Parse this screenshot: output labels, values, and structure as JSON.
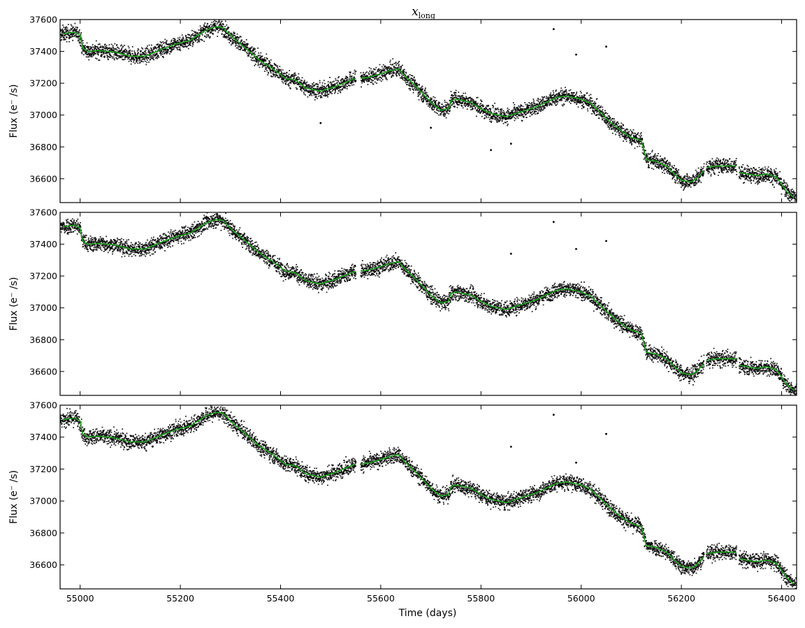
{
  "title": {
    "main": "x",
    "sub": "long"
  },
  "colors": {
    "points": "#000000",
    "model": "#1fa51f",
    "background": "#ffffff"
  },
  "chart_data": [
    {
      "type": "scatter",
      "panel": "top",
      "ylabel": "Flux (e⁻ /s)",
      "xlabel": "",
      "xlim": [
        54960,
        56430
      ],
      "ylim": [
        36450,
        37600
      ],
      "yticks": [
        36600,
        36800,
        37000,
        37200,
        37400,
        37600
      ],
      "xticks": [
        55000,
        55200,
        55400,
        55600,
        55800,
        56000,
        56200,
        56400
      ],
      "show_xticklabels": false,
      "gaps": [
        [
          55550,
          55560
        ],
        [
          56245,
          56250
        ],
        [
          56310,
          56315
        ]
      ],
      "model": {
        "x": [
          54965,
          54990,
          55000,
          55005,
          55015,
          55040,
          55070,
          55100,
          55130,
          55160,
          55190,
          55220,
          55250,
          55270,
          55285,
          55300,
          55330,
          55360,
          55385,
          55410,
          55430,
          55450,
          55480,
          55510,
          55540,
          55550,
          55560,
          55580,
          55600,
          55620,
          55635,
          55650,
          55670,
          55700,
          55720,
          55735,
          55740,
          55750,
          55765,
          55780,
          55800,
          55820,
          55850,
          55870,
          55890,
          55910,
          55930,
          55950,
          55970,
          56000,
          56020,
          56040,
          56060,
          56080,
          56100,
          56110,
          56120,
          56125,
          56130,
          56150,
          56170,
          56190,
          56200,
          56220,
          56230,
          56245,
          56250,
          56270,
          56290,
          56310,
          56315,
          56330,
          56350,
          56370,
          56390,
          56410,
          56425
        ],
        "y": [
          37510,
          37520,
          37500,
          37420,
          37400,
          37405,
          37395,
          37370,
          37370,
          37410,
          37445,
          37470,
          37530,
          37555,
          37550,
          37500,
          37420,
          37340,
          37290,
          37230,
          37220,
          37170,
          37150,
          37180,
          37220,
          37230,
          37230,
          37240,
          37260,
          37280,
          37290,
          37240,
          37180,
          37080,
          37030,
          37040,
          37090,
          37100,
          37090,
          37080,
          37040,
          37010,
          36990,
          37010,
          37030,
          37050,
          37080,
          37110,
          37120,
          37100,
          37070,
          37010,
          36950,
          36900,
          36860,
          36850,
          36840,
          36780,
          36720,
          36710,
          36680,
          36620,
          36590,
          36580,
          36600,
          36650,
          36670,
          36680,
          36680,
          36680,
          36640,
          36630,
          36620,
          36630,
          36610,
          36520,
          36480
        ]
      },
      "outliers": {
        "x": [
          55945,
          55990,
          56050,
          55820,
          55860,
          55700,
          55480
        ],
        "y": [
          37540,
          37380,
          37430,
          36780,
          36820,
          36920,
          36950
        ]
      }
    },
    {
      "type": "scatter",
      "panel": "middle",
      "ylabel": "Flux (e⁻ /s)",
      "xlabel": "",
      "xlim": [
        54960,
        56430
      ],
      "ylim": [
        36450,
        37600
      ],
      "yticks": [
        36600,
        36800,
        37000,
        37200,
        37400,
        37600
      ],
      "xticks": [
        55000,
        55200,
        55400,
        55600,
        55800,
        56000,
        56200,
        56400
      ],
      "show_xticklabels": false,
      "gaps": [
        [
          55550,
          55560
        ],
        [
          56245,
          56250
        ],
        [
          56310,
          56315
        ]
      ],
      "model": {
        "x": [
          54965,
          54990,
          55000,
          55005,
          55015,
          55040,
          55070,
          55100,
          55130,
          55160,
          55190,
          55220,
          55250,
          55270,
          55285,
          55300,
          55330,
          55360,
          55385,
          55410,
          55430,
          55450,
          55480,
          55510,
          55540,
          55550,
          55560,
          55580,
          55600,
          55620,
          55635,
          55650,
          55670,
          55700,
          55720,
          55735,
          55740,
          55750,
          55765,
          55780,
          55800,
          55820,
          55850,
          55870,
          55890,
          55910,
          55930,
          55950,
          55970,
          56000,
          56020,
          56040,
          56060,
          56080,
          56100,
          56110,
          56120,
          56125,
          56130,
          56150,
          56170,
          56190,
          56200,
          56220,
          56230,
          56245,
          56250,
          56270,
          56290,
          56310,
          56315,
          56330,
          56350,
          56370,
          56390,
          56410,
          56425
        ],
        "y": [
          37510,
          37520,
          37500,
          37420,
          37400,
          37405,
          37395,
          37370,
          37370,
          37410,
          37445,
          37470,
          37530,
          37555,
          37550,
          37500,
          37420,
          37340,
          37290,
          37230,
          37220,
          37170,
          37150,
          37180,
          37220,
          37230,
          37230,
          37240,
          37260,
          37280,
          37290,
          37240,
          37180,
          37080,
          37030,
          37040,
          37090,
          37100,
          37090,
          37080,
          37040,
          37010,
          36990,
          37010,
          37030,
          37050,
          37080,
          37110,
          37120,
          37100,
          37070,
          37010,
          36950,
          36900,
          36860,
          36850,
          36840,
          36780,
          36720,
          36710,
          36680,
          36620,
          36590,
          36580,
          36600,
          36650,
          36670,
          36680,
          36680,
          36680,
          36640,
          36630,
          36620,
          36630,
          36610,
          36520,
          36480
        ]
      },
      "outliers": {
        "x": [
          55945,
          55990,
          56050,
          55860
        ],
        "y": [
          37540,
          37370,
          37420,
          37340
        ]
      }
    },
    {
      "type": "scatter",
      "panel": "bottom",
      "ylabel": "Flux (e⁻ /s)",
      "xlabel": "Time (days)",
      "xlim": [
        54960,
        56430
      ],
      "ylim": [
        36450,
        37600
      ],
      "yticks": [
        36600,
        36800,
        37000,
        37200,
        37400,
        37600
      ],
      "xticks": [
        55000,
        55200,
        55400,
        55600,
        55800,
        56000,
        56200,
        56400
      ],
      "show_xticklabels": true,
      "gaps": [
        [
          55550,
          55560
        ],
        [
          56245,
          56250
        ],
        [
          56310,
          56315
        ]
      ],
      "model": {
        "x": [
          54965,
          54990,
          55000,
          55005,
          55015,
          55040,
          55070,
          55100,
          55130,
          55160,
          55190,
          55220,
          55250,
          55270,
          55285,
          55300,
          55330,
          55360,
          55385,
          55410,
          55430,
          55450,
          55480,
          55510,
          55540,
          55550,
          55560,
          55580,
          55600,
          55620,
          55635,
          55650,
          55670,
          55700,
          55720,
          55735,
          55740,
          55750,
          55765,
          55780,
          55800,
          55820,
          55850,
          55870,
          55890,
          55910,
          55930,
          55950,
          55970,
          56000,
          56020,
          56040,
          56060,
          56080,
          56100,
          56110,
          56120,
          56125,
          56130,
          56150,
          56170,
          56190,
          56200,
          56220,
          56230,
          56245,
          56250,
          56270,
          56290,
          56310,
          56315,
          56330,
          56350,
          56370,
          56390,
          56410,
          56425
        ],
        "y": [
          37510,
          37520,
          37500,
          37420,
          37400,
          37405,
          37395,
          37370,
          37370,
          37410,
          37445,
          37470,
          37530,
          37555,
          37550,
          37500,
          37420,
          37340,
          37290,
          37230,
          37220,
          37170,
          37150,
          37180,
          37220,
          37230,
          37230,
          37240,
          37260,
          37280,
          37290,
          37240,
          37180,
          37080,
          37030,
          37040,
          37090,
          37100,
          37090,
          37080,
          37040,
          37010,
          36990,
          37010,
          37030,
          37050,
          37080,
          37110,
          37120,
          37100,
          37070,
          37010,
          36950,
          36900,
          36860,
          36850,
          36840,
          36780,
          36720,
          36710,
          36680,
          36620,
          36590,
          36580,
          36600,
          36650,
          36670,
          36680,
          36680,
          36680,
          36640,
          36630,
          36620,
          36630,
          36610,
          36520,
          36480
        ]
      },
      "outliers": {
        "x": [
          55945,
          55990,
          56050,
          55860
        ],
        "y": [
          37540,
          37240,
          37420,
          37340
        ]
      }
    }
  ]
}
